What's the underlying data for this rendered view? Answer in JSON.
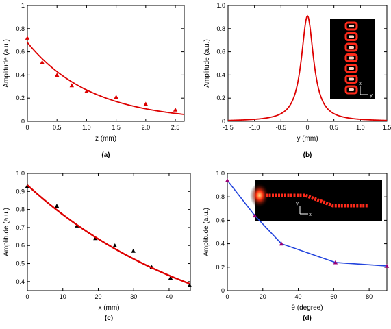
{
  "colors": {
    "red": "#dd0000",
    "blue": "#2244dd",
    "marker_black": "#000000",
    "marker_red": "#dd0000",
    "marker_purple": "#990077",
    "inset_bg": "#000000",
    "inset_glow": "#ff2a1a"
  },
  "chart_data": [
    {
      "type": "scatter",
      "panel_label": "(a)",
      "xlabel": "z (mm)",
      "ylabel": "Amplitude (a.u.)",
      "xlim": [
        0,
        2.65
      ],
      "ylim": [
        0,
        1.0
      ],
      "xticks": [
        0,
        0.5,
        1,
        1.5,
        2,
        2.5
      ],
      "xtick_labels": [
        "0",
        "0.5",
        "1.0",
        "1.5",
        "2.0",
        "2.5"
      ],
      "yticks": [
        0,
        0.2,
        0.4,
        0.6,
        0.8,
        1.0
      ],
      "ytick_labels": [
        "0",
        "0.2",
        "0.4",
        "0.6",
        "0.8",
        "1"
      ],
      "series": [
        {
          "kind": "points",
          "marker": "triangle",
          "color": "#dd0000",
          "x": [
            0,
            0.25,
            0.5,
            0.75,
            1.0,
            1.5,
            2.0,
            2.5
          ],
          "y": [
            0.72,
            0.51,
            0.4,
            0.31,
            0.26,
            0.21,
            0.15,
            0.1
          ]
        },
        {
          "kind": "fit",
          "color": "#dd0000",
          "curve": "exponential",
          "params": {
            "a": 0.68,
            "b": 0.92,
            "c": 0.0
          }
        }
      ]
    },
    {
      "type": "line",
      "panel_label": "(b)",
      "xlabel": "y (mm)",
      "ylabel": "Amplitude (a.u.)",
      "xlim": [
        -1.5,
        1.5
      ],
      "ylim": [
        0,
        1.0
      ],
      "xticks": [
        -1.5,
        -1.0,
        -0.5,
        0,
        0.5,
        1.0,
        1.5
      ],
      "xtick_labels": [
        "-1.5",
        "-1.0",
        "-0.5",
        "0",
        "0.5",
        "1.0",
        "1.5"
      ],
      "yticks": [
        0,
        0.2,
        0.4,
        0.6,
        0.8,
        1.0
      ],
      "ytick_labels": [
        "0",
        "0.2",
        "0.4",
        "0.6",
        "0.8",
        "1.0"
      ],
      "series": [
        {
          "kind": "fit",
          "color": "#dd0000",
          "curve": "lorentzian",
          "params": {
            "amp": 0.91,
            "gamma": 0.14
          }
        }
      ],
      "inset": {
        "kind": "dot-column",
        "axis_labels": [
          "x",
          "y"
        ]
      }
    },
    {
      "type": "scatter",
      "panel_label": "(c)",
      "xlabel": "x (mm)",
      "ylabel": "Amplitude (a.u.)",
      "xlim": [
        0,
        46
      ],
      "ylim": [
        0.35,
        1.0
      ],
      "xticks": [
        0,
        10,
        20,
        30,
        40
      ],
      "xtick_labels": [
        "0",
        "10",
        "20",
        "30",
        "40"
      ],
      "yticks": [
        0.4,
        0.5,
        0.6,
        0.7,
        0.8,
        0.9,
        1.0
      ],
      "ytick_labels": [
        "0.4",
        "0.5",
        "0.6",
        "0.7",
        "0.8",
        "0.9",
        "1.0"
      ],
      "series": [
        {
          "kind": "points",
          "marker": "triangle",
          "color": "#000000",
          "x": [
            0,
            8.3,
            14,
            19.2,
            24.7,
            29.9,
            35.1,
            40.4,
            45.8
          ],
          "y": [
            0.93,
            0.82,
            0.71,
            0.64,
            0.6,
            0.57,
            0.48,
            0.42,
            0.38
          ]
        },
        {
          "kind": "fit",
          "color": "#dd0000",
          "curve": "exponential",
          "params": {
            "a": 0.935,
            "b": 0.0192,
            "c": 0.0
          }
        }
      ]
    },
    {
      "type": "line",
      "panel_label": "(d)",
      "xlabel": "θ (degree)",
      "ylabel": "Amplitude (a.u.)",
      "xlim": [
        0,
        90
      ],
      "ylim": [
        0,
        1.0
      ],
      "xticks": [
        0,
        20,
        40,
        60,
        80
      ],
      "xtick_labels": [
        "0",
        "20",
        "40",
        "60",
        "80"
      ],
      "yticks": [
        0,
        0.2,
        0.4,
        0.6,
        0.8,
        1.0
      ],
      "ytick_labels": [
        "0",
        "0.2",
        "0.4",
        "0.6",
        "0.8",
        "1.0"
      ],
      "series": [
        {
          "kind": "points-line",
          "marker": "triangle",
          "color": "#2244dd",
          "marker_color": "#990077",
          "x": [
            0,
            15.5,
            30.5,
            61,
            90
          ],
          "y": [
            0.94,
            0.64,
            0.4,
            0.24,
            0.21
          ]
        }
      ],
      "inset": {
        "kind": "waveguide",
        "axis_labels": [
          "y",
          "x"
        ]
      }
    }
  ]
}
